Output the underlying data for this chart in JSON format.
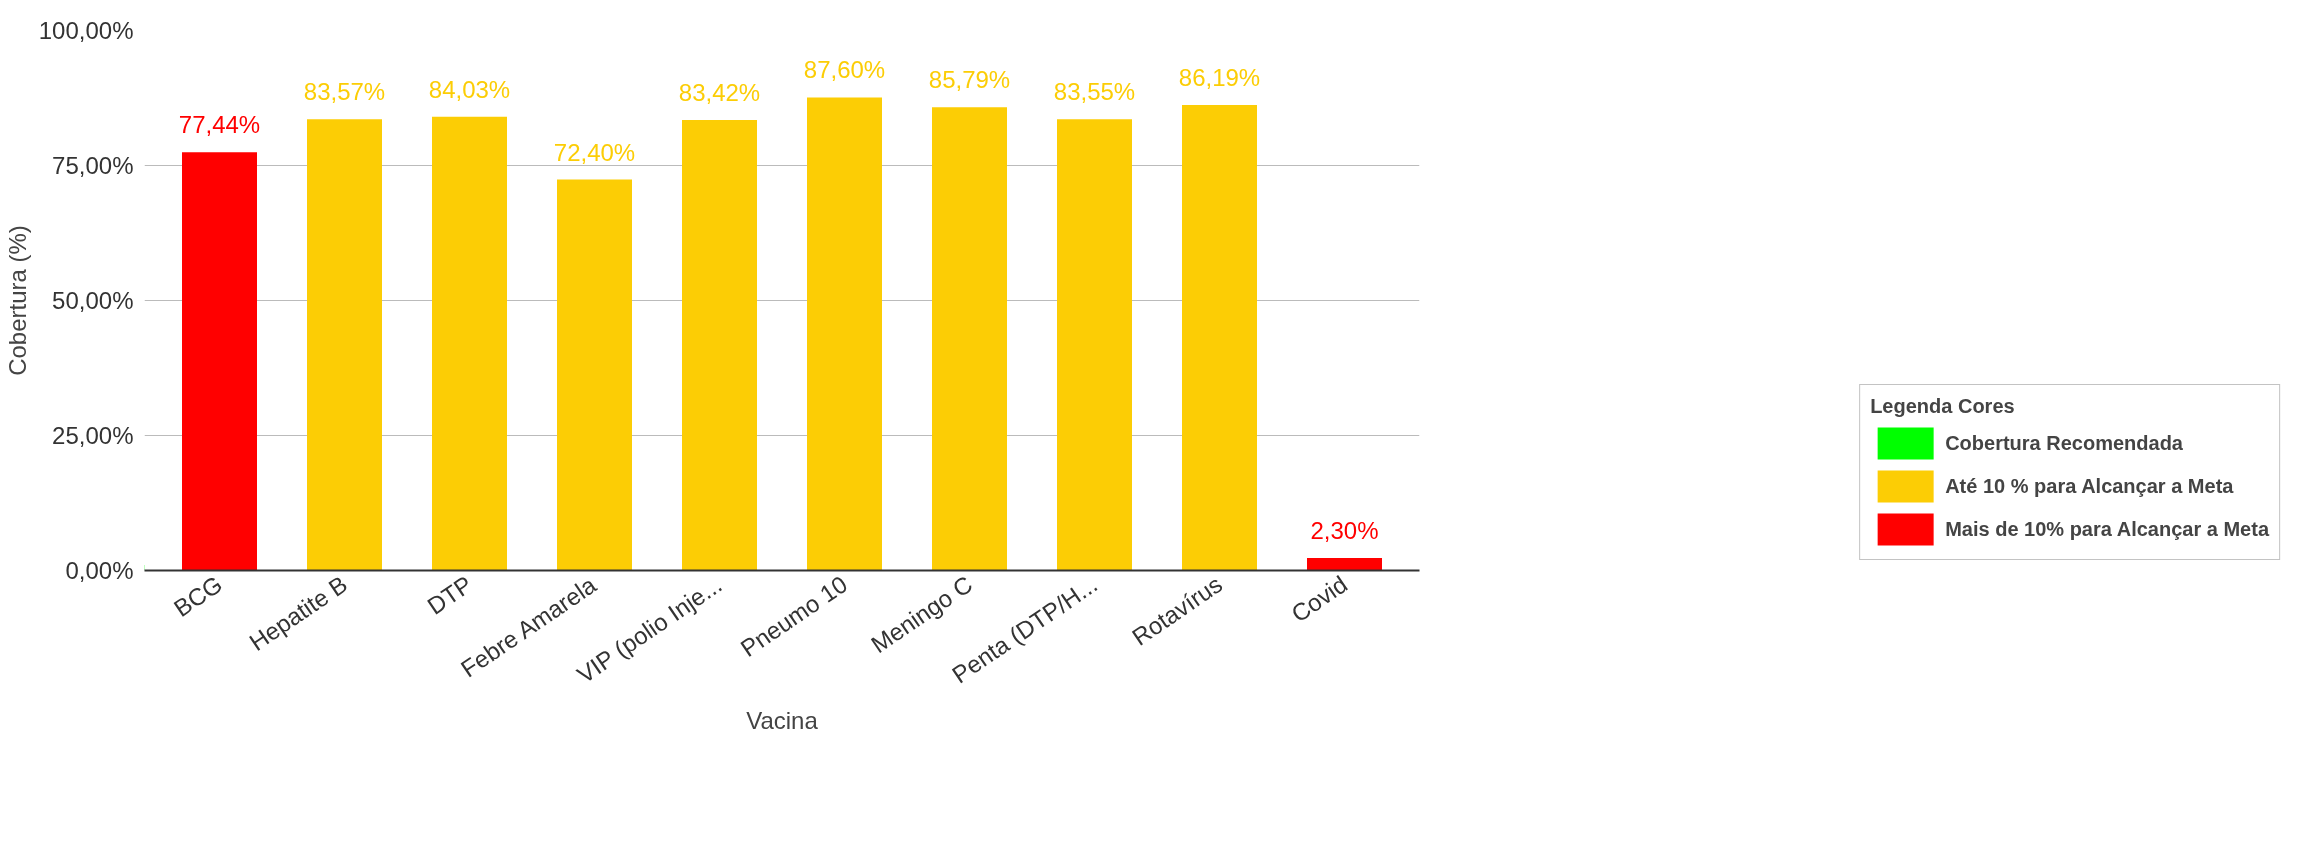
{
  "chart_data": {
    "type": "bar",
    "stacked": true,
    "xlabel": "Vacina",
    "ylabel": "Cobertura (%)",
    "legend_title": "Legenda Cores",
    "legend": "bottom right",
    "categories": [
      "BCG",
      "Hepatite B",
      "DTP",
      "Febre Amarela",
      "VIP (polio Inje...",
      "Pneumo 10",
      "Meningo C",
      "Penta (DTP/H...",
      "Rotavírus",
      "Covid"
    ],
    "series": [
      {
        "name": "Cobertura Recomendada",
        "color": "#00ff00",
        "values": [
          null,
          null,
          null,
          null,
          null,
          null,
          null,
          null,
          null,
          null
        ]
      },
      {
        "name": "Até 10 % para Alcançar a Meta",
        "color": "#fccd05",
        "values": [
          null,
          83.57,
          84.03,
          72.4,
          83.42,
          87.6,
          85.79,
          83.55,
          86.19,
          null
        ],
        "value_labels": [
          null,
          "83,57%",
          "84,03%",
          "72,40%",
          "83,42%",
          "87,60%",
          "85,79%",
          "83,55%",
          "86,19%",
          null
        ]
      },
      {
        "name": "Mais de 10% para Alcançar a Meta",
        "color": "#ff0000",
        "values": [
          77.44,
          null,
          null,
          null,
          null,
          null,
          null,
          null,
          null,
          2.3
        ],
        "value_labels": [
          "77,44%",
          null,
          null,
          null,
          null,
          null,
          null,
          null,
          null,
          "2,30%"
        ]
      }
    ],
    "ylim": [
      0,
      100
    ],
    "yticks": [
      {
        "value": 0,
        "label": "0,00%"
      },
      {
        "value": 25,
        "label": "25,00%"
      },
      {
        "value": 50,
        "label": "50,00%"
      },
      {
        "value": 75,
        "label": "75,00%"
      },
      {
        "value": 100,
        "label": "100,00%"
      }
    ],
    "grid": "y"
  }
}
